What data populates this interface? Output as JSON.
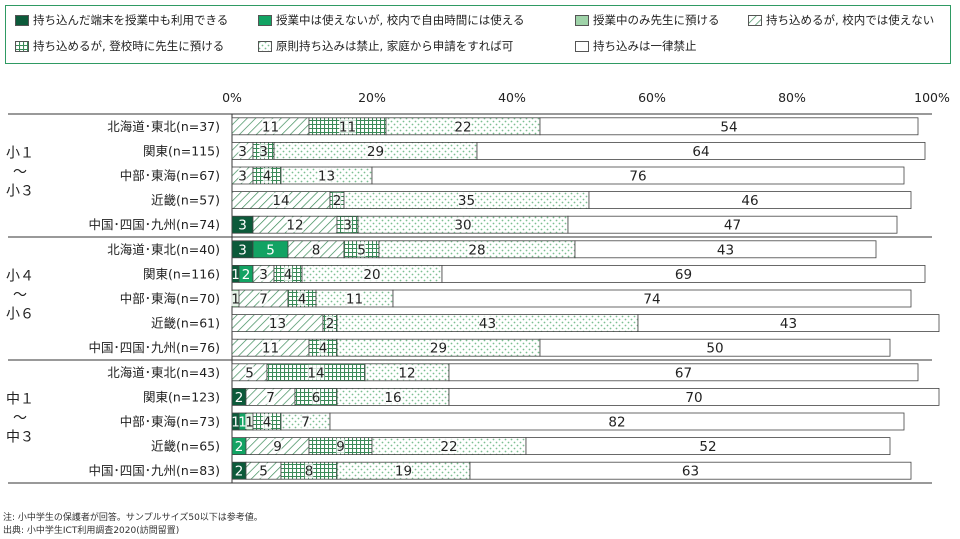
{
  "legend": {
    "items": [
      {
        "label": "持ち込んだ端末を授業中も利用できる",
        "pattern": "dark"
      },
      {
        "label": "授業中は使えないが, 校内で自由時間には使える",
        "pattern": "mid"
      },
      {
        "label": "授業中のみ先生に預ける",
        "pattern": "light"
      },
      {
        "label": "持ち込めるが, 校内では使えない",
        "pattern": "diag"
      },
      {
        "label": "持ち込めるが, 登校時に先生に預ける",
        "pattern": "grid"
      },
      {
        "label": "原則持ち込みは禁止, 家庭から申請をすれば可",
        "pattern": "dots"
      },
      {
        "label": "持ち込みは一律禁止",
        "pattern": "white"
      }
    ]
  },
  "colors": {
    "dark": "#0c5a3a",
    "mid": "#12a363",
    "light": "#9fd3a9",
    "pattern_stroke": "#3a8a58",
    "dots": "#7cbf92",
    "border": "#555555",
    "legend_border": "#2f9a63"
  },
  "chart_data": {
    "type": "bar",
    "orientation": "horizontal",
    "stacked": true,
    "xlim": [
      0,
      100
    ],
    "x_ticks": [
      "0%",
      "20%",
      "40%",
      "60%",
      "80%",
      "100%"
    ],
    "groups": [
      {
        "label": [
          "小１",
          "～",
          "小３"
        ],
        "rows": [
          0,
          1,
          2,
          3,
          4
        ]
      },
      {
        "label": [
          "小４",
          "～",
          "小６"
        ],
        "rows": [
          5,
          6,
          7,
          8,
          9
        ]
      },
      {
        "label": [
          "中１",
          "～",
          "中３"
        ],
        "rows": [
          10,
          11,
          12,
          13,
          14
        ]
      }
    ],
    "categories": [
      "北海道･東北(n=37)",
      "関東(n=115)",
      "中部･東海(n=67)",
      "近畿(n=57)",
      "中国･四国･九州(n=74)",
      "北海道･東北(n=40)",
      "関東(n=116)",
      "中部･東海(n=70)",
      "近畿(n=61)",
      "中国･四国･九州(n=76)",
      "北海道･東北(n=43)",
      "関東(n=123)",
      "中部･東海(n=73)",
      "近畿(n=65)",
      "中国･四国･九州(n=83)"
    ],
    "series": [
      {
        "name": "持ち込んだ端末を授業中も利用できる",
        "values": [
          0,
          0,
          0,
          0,
          3,
          3,
          1,
          0,
          0,
          0,
          0,
          2,
          1,
          0,
          2
        ]
      },
      {
        "name": "授業中は使えないが, 校内で自由時間には使える",
        "values": [
          0,
          0,
          0,
          0,
          0,
          5,
          2,
          0,
          0,
          0,
          0,
          0,
          1,
          2,
          0
        ]
      },
      {
        "name": "授業中のみ先生に預ける",
        "values": [
          0,
          0,
          0,
          0,
          0,
          0,
          0,
          1,
          0,
          0,
          0,
          0,
          1,
          0,
          0
        ]
      },
      {
        "name": "持ち込めるが, 校内では使えない",
        "values": [
          11,
          3,
          3,
          14,
          12,
          8,
          3,
          7,
          13,
          11,
          5,
          7,
          0,
          9,
          5
        ]
      },
      {
        "name": "持ち込めるが, 登校時に先生に預ける",
        "values": [
          11,
          3,
          4,
          2,
          3,
          5,
          4,
          4,
          2,
          4,
          14,
          6,
          4,
          9,
          8
        ]
      },
      {
        "name": "原則持ち込みは禁止, 家庭から申請をすれば可",
        "values": [
          22,
          29,
          13,
          35,
          30,
          28,
          20,
          11,
          43,
          29,
          12,
          16,
          7,
          22,
          19
        ]
      },
      {
        "name": "持ち込みは一律禁止",
        "values": [
          54,
          64,
          76,
          46,
          47,
          43,
          69,
          74,
          43,
          50,
          67,
          70,
          82,
          52,
          63
        ]
      }
    ]
  },
  "notes": {
    "note1": "注: 小中学生の保護者が回答。サンプルサイズ50以下は参考値。",
    "note2": "出典: 小中学生ICT利用調査2020(訪問留置)"
  }
}
